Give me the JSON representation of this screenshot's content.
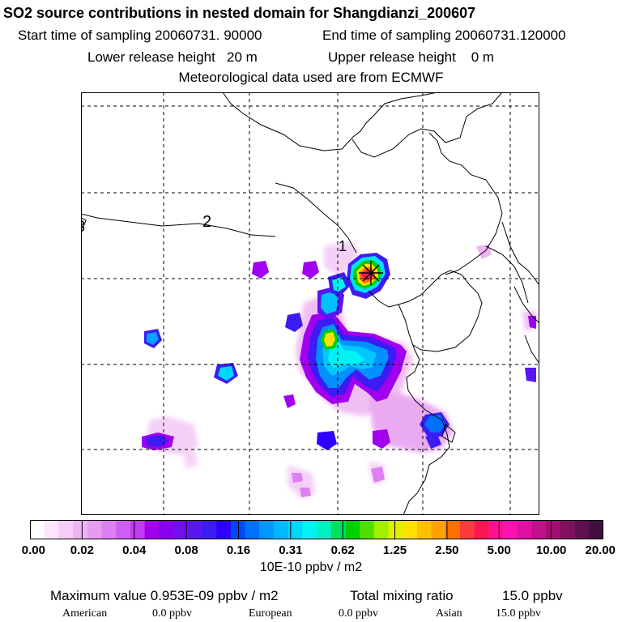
{
  "header": {
    "title": "SO2 source contributions in nested domain for Shangdianzi_200607",
    "start_label": "Start time of sampling 20060731. 90000",
    "end_label": "End time of sampling 20060731.120000",
    "lower_label": "Lower release height   20 m",
    "upper_label": "Upper release height    0 m",
    "met_label": "Meteorological data used are from ECMWF"
  },
  "map": {
    "contour_labels": [
      "3",
      "2",
      "1"
    ],
    "station_marker": "receptor-star-icon",
    "colors": {
      "coast": "#000000",
      "grid": "#000000",
      "frame": "#000000"
    }
  },
  "colorbar": {
    "colors": [
      "#ffffff",
      "#fbe6fb",
      "#f6cdf6",
      "#efb4f3",
      "#e79cf1",
      "#dd80f1",
      "#cf5ff2",
      "#c03cf2",
      "#a100f0",
      "#8800f0",
      "#7010f0",
      "#5a16f0",
      "#3c1cf2",
      "#2d00ff",
      "#0047ff",
      "#0070ff",
      "#0098ff",
      "#00b8ff",
      "#00d6ff",
      "#00f2f2",
      "#00f0c0",
      "#00e060",
      "#00d000",
      "#4fe000",
      "#a0f000",
      "#e0f000",
      "#ffe000",
      "#ffc000",
      "#ffa000",
      "#ff7000",
      "#ff3a3a",
      "#ff1454",
      "#ff1090",
      "#ff10b0",
      "#e010a0",
      "#c0108a",
      "#a01070",
      "#801060",
      "#601050",
      "#401040"
    ],
    "tick_labels": [
      "0.00",
      "0.02",
      "0.04",
      "0.08",
      "0.16",
      "0.31",
      "0.62",
      "1.25",
      "2.50",
      "5.00",
      "10.00",
      "20.00"
    ],
    "unit": "10E-10 ppbv / m2"
  },
  "footer": {
    "max_label": "Maximum value  0.953E-09 ppbv / m2",
    "total_label": "Total mixing ratio",
    "total_value": "15.0 ppbv",
    "american_label": "American",
    "american_value": "0.0 ppbv",
    "european_label": "European",
    "european_value": "0.0 ppbv",
    "asian_label": "Asian",
    "asian_value": "15.0 ppbv"
  }
}
